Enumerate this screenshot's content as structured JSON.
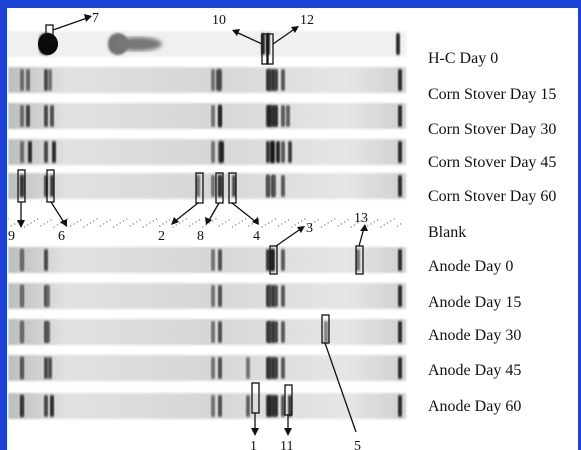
{
  "lanes": [
    "H-C Day 0",
    "Corn Stover Day 15",
    "Corn Stover Day 30",
    "Corn Stover Day 45",
    "Corn Stover Day 60",
    "Blank",
    "Anode Day 0",
    "Anode Day 15",
    "Anode Day 30",
    "Anode Day 45",
    "Anode Day 60"
  ],
  "band_numbers": [
    "1",
    "2",
    "3",
    "4",
    "5",
    "6",
    "7",
    "8",
    "9",
    "10",
    "11",
    "12",
    "13"
  ],
  "colors": {
    "frame": "#1a43d6",
    "band": "#111111",
    "lane_bg": "#d8d8d8"
  }
}
